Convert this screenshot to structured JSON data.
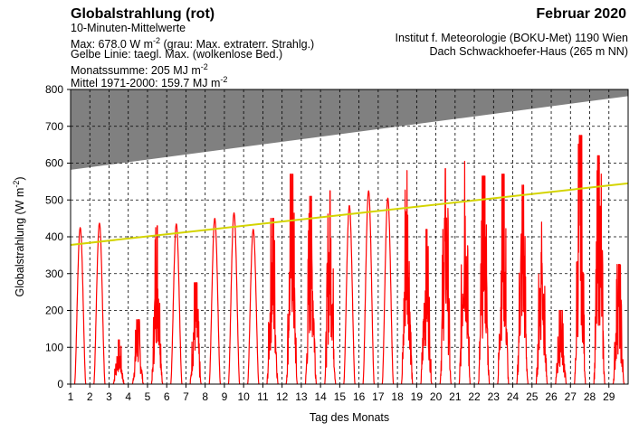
{
  "header": {
    "title": "Globalstrahlung (rot)",
    "line1": "10-Minuten-Mittelwerte",
    "line2": "Max:  678.0 W m",
    "line2_sup": "-2",
    "line2_rest": "  (grau: Max. extraterr. Strahlg.)",
    "line3": "Gelbe Linie: taegl. Max. (wolkenlose Bed.)",
    "line4": "Monatssumme:  205 MJ m",
    "line4_sup": "-2",
    "line5": "Mittel 1971-2000:  159.7 MJ m",
    "line5_sup": "-2",
    "month": "Februar 2020",
    "institute1": "Institut f. Meteorologie (BOKU-Met) 1190 Wien",
    "institute2": "Dach Schwackhoefer-Haus (265 m NN)"
  },
  "colors": {
    "global": "#ff0000",
    "extraterrestrial": "#808080",
    "clear_sky": "#d4d400",
    "grid": "#000000"
  },
  "chart_data": {
    "type": "line",
    "title": "Globalstrahlung (rot)",
    "xlabel": "Tag des Monats",
    "ylabel": "Globalstrahlung (W m",
    "ylabel_sup": "-2",
    "ylabel_close": ")",
    "xlim": [
      1,
      30
    ],
    "ylim": [
      0,
      800
    ],
    "x_ticks": [
      1,
      2,
      3,
      4,
      5,
      6,
      7,
      8,
      9,
      10,
      11,
      12,
      13,
      14,
      15,
      16,
      17,
      18,
      19,
      20,
      21,
      22,
      23,
      24,
      25,
      26,
      27,
      28,
      29
    ],
    "y_ticks": [
      0,
      100,
      200,
      300,
      400,
      500,
      600,
      700,
      800
    ],
    "grid": true,
    "extraterrestrial_max": {
      "start": 582,
      "end": 782
    },
    "clear_sky_max": {
      "start": 378,
      "end": 545
    },
    "daily_max": [
      {
        "day": 1,
        "max": 425,
        "shape": "clear"
      },
      {
        "day": 2,
        "max": 437,
        "shape": "clear"
      },
      {
        "day": 3,
        "max": 120,
        "shape": "cloudy"
      },
      {
        "day": 4,
        "max": 175,
        "shape": "cloudy"
      },
      {
        "day": 5,
        "max": 430,
        "shape": "cloudy"
      },
      {
        "day": 6,
        "max": 435,
        "shape": "clear"
      },
      {
        "day": 7,
        "max": 275,
        "shape": "cloudy"
      },
      {
        "day": 8,
        "max": 450,
        "shape": "clear"
      },
      {
        "day": 9,
        "max": 465,
        "shape": "clear"
      },
      {
        "day": 10,
        "max": 420,
        "shape": "clear"
      },
      {
        "day": 11,
        "max": 450,
        "shape": "cloudy"
      },
      {
        "day": 12,
        "max": 570,
        "shape": "cloudy"
      },
      {
        "day": 13,
        "max": 510,
        "shape": "cloudy"
      },
      {
        "day": 14,
        "max": 525,
        "shape": "cloudy"
      },
      {
        "day": 15,
        "max": 485,
        "shape": "clear"
      },
      {
        "day": 16,
        "max": 525,
        "shape": "clear"
      },
      {
        "day": 17,
        "max": 505,
        "shape": "clear"
      },
      {
        "day": 18,
        "max": 580,
        "shape": "cloudy"
      },
      {
        "day": 19,
        "max": 420,
        "shape": "cloudy"
      },
      {
        "day": 20,
        "max": 585,
        "shape": "cloudy"
      },
      {
        "day": 21,
        "max": 605,
        "shape": "cloudy"
      },
      {
        "day": 22,
        "max": 565,
        "shape": "cloudy"
      },
      {
        "day": 23,
        "max": 570,
        "shape": "cloudy"
      },
      {
        "day": 24,
        "max": 540,
        "shape": "cloudy"
      },
      {
        "day": 25,
        "max": 440,
        "shape": "cloudy"
      },
      {
        "day": 26,
        "max": 200,
        "shape": "cloudy"
      },
      {
        "day": 27,
        "max": 675,
        "shape": "cloudy"
      },
      {
        "day": 28,
        "max": 620,
        "shape": "cloudy"
      },
      {
        "day": 29,
        "max": 325,
        "shape": "cloudy"
      }
    ]
  }
}
